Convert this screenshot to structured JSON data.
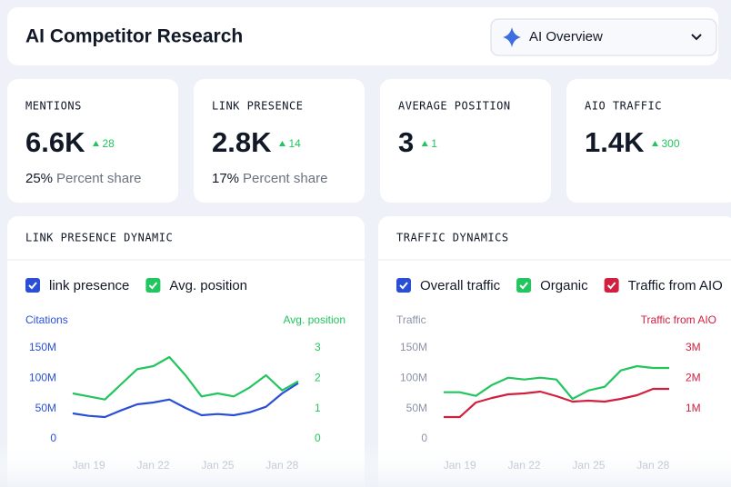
{
  "header": {
    "title": "AI Competitor Research",
    "dropdown": "AI Overview"
  },
  "kpis": [
    {
      "label": "MENTIONS",
      "value": "6.6K",
      "change": 28,
      "share": "25%",
      "share_label": "Percent share"
    },
    {
      "label": "LINK PRESENCE",
      "value": "2.8K",
      "change": 14,
      "share": "17%",
      "share_label": "Percent share"
    },
    {
      "label": "AVERAGE POSITION",
      "value": "3",
      "change": 1
    },
    {
      "label": "AIO TRAFFIC",
      "value": "1.4K",
      "change": 300
    }
  ],
  "chart_data": [
    {
      "type": "line",
      "title": "LINK PRESENCE DYNAMIC",
      "ylabel": "Citations",
      "ylabel_color": "#2a4fd6",
      "y2label": "Avg. position",
      "y2label_color": "#22c55e",
      "categories": [
        null,
        "Jan 19",
        null,
        null,
        null,
        "Jan 22",
        null,
        null,
        null,
        "Jan 25",
        null,
        null,
        null,
        "Jan 28",
        null
      ],
      "series": [
        {
          "name": "link presence",
          "color": "#2a4fd6",
          "values": [
            42,
            38,
            36,
            47,
            57,
            60,
            65,
            51,
            39,
            41,
            39,
            44,
            53,
            75,
            92
          ]
        },
        {
          "name": "Avg. position",
          "color": "#22c55e",
          "axis": "y2",
          "values": [
            1.5,
            1.4,
            1.3,
            1.8,
            2.3,
            2.4,
            2.7,
            2.1,
            1.4,
            1.5,
            1.4,
            1.7,
            2.1,
            1.6,
            1.9
          ]
        }
      ],
      "ylim": [
        0,
        150
      ],
      "yticks": [
        0,
        {
          "value": 50,
          "label": "50M"
        },
        {
          "value": 100,
          "label": "100M"
        },
        {
          "value": 150,
          "label": "150M"
        }
      ],
      "y2lim": [
        0,
        3
      ],
      "y2ticks": [
        0,
        1,
        2,
        3
      ],
      "grid": false
    },
    {
      "type": "line",
      "title": "TRAFFIC DYNAMICS",
      "ylabel": "Traffic",
      "ylabel_color": "#8a93a6",
      "y2label": "Traffic from AIO",
      "y2label_color": "#d1203f",
      "categories": [
        null,
        "Jan 19",
        null,
        null,
        null,
        "Jan 22",
        null,
        null,
        null,
        "Jan 25",
        null,
        null,
        null,
        "Jan 28",
        null
      ],
      "series": [
        {
          "name": "Overall traffic",
          "color": "#2a4fd6",
          "values": [
            null,
            null,
            null,
            null,
            null,
            null,
            null,
            null,
            null,
            null,
            null,
            null,
            null,
            null,
            null
          ]
        },
        {
          "name": "Organic",
          "color": "#22c55e",
          "values": [
            77,
            77,
            71,
            89,
            101,
            98,
            101,
            98,
            66,
            80,
            86,
            113,
            120,
            117,
            117
          ]
        },
        {
          "name": "Traffic from AIO",
          "color": "#d1203f",
          "axis": "y2",
          "values": [
            0.72,
            0.72,
            1.2,
            1.35,
            1.47,
            1.5,
            1.56,
            1.41,
            1.23,
            1.26,
            1.23,
            1.32,
            1.44,
            1.65,
            1.65
          ]
        }
      ],
      "ylim": [
        0,
        150
      ],
      "yticks": [
        0,
        {
          "value": 50,
          "label": "50M"
        },
        {
          "value": 100,
          "label": "100M"
        },
        {
          "value": 150,
          "label": "150M"
        }
      ],
      "y2lim": [
        0,
        3
      ],
      "y2ticks": [
        {
          "value": 1,
          "label": "1M"
        },
        {
          "value": 2,
          "label": "2M"
        },
        {
          "value": 3,
          "label": "3M"
        }
      ],
      "grid": false
    }
  ]
}
